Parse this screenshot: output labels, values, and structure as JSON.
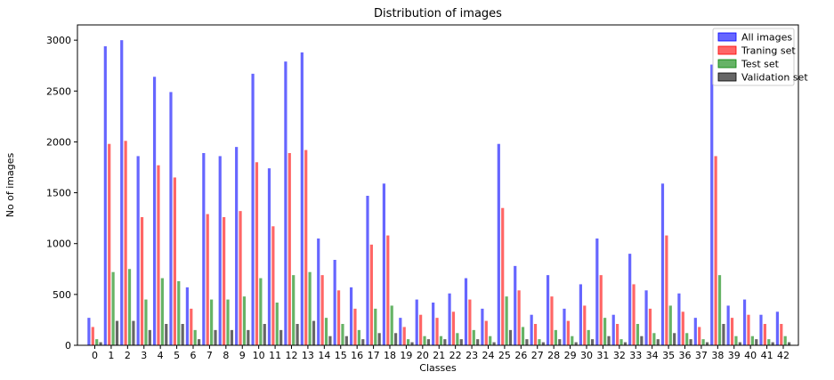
{
  "chart_data": {
    "type": "bar",
    "title": "Distribution of images",
    "xlabel": "Classes",
    "ylabel": "No of images",
    "ylim": [
      0,
      3150
    ],
    "yticks": [
      0,
      500,
      1000,
      1500,
      2000,
      2500,
      3000
    ],
    "grid": false,
    "legend_position": "top-right",
    "categories": [
      "0",
      "1",
      "2",
      "3",
      "4",
      "5",
      "6",
      "7",
      "8",
      "9",
      "10",
      "11",
      "12",
      "13",
      "14",
      "15",
      "16",
      "17",
      "18",
      "19",
      "20",
      "21",
      "22",
      "23",
      "24",
      "25",
      "26",
      "27",
      "28",
      "29",
      "30",
      "31",
      "32",
      "33",
      "34",
      "35",
      "36",
      "37",
      "38",
      "39",
      "40",
      "41",
      "42"
    ],
    "series": [
      {
        "name": "All images",
        "color": "#0000ff",
        "values": [
          270,
          2940,
          3000,
          1860,
          2640,
          2490,
          570,
          1890,
          1860,
          1950,
          2670,
          1740,
          2790,
          2880,
          1050,
          840,
          570,
          1470,
          1590,
          270,
          450,
          420,
          510,
          660,
          360,
          1980,
          780,
          300,
          690,
          360,
          600,
          1050,
          300,
          900,
          540,
          1590,
          510,
          270,
          2760,
          390,
          450,
          300,
          330
        ]
      },
      {
        "name": "Traning set",
        "color": "#ff0000",
        "values": [
          180,
          1980,
          2010,
          1260,
          1770,
          1650,
          360,
          1290,
          1260,
          1320,
          1800,
          1170,
          1890,
          1920,
          690,
          540,
          360,
          990,
          1080,
          180,
          300,
          270,
          330,
          450,
          240,
          1350,
          540,
          210,
          480,
          240,
          390,
          690,
          210,
          600,
          360,
          1080,
          330,
          180,
          1860,
          270,
          300,
          210,
          210
        ]
      },
      {
        "name": "Test set",
        "color": "#008000",
        "values": [
          60,
          720,
          750,
          450,
          660,
          630,
          150,
          450,
          450,
          480,
          660,
          420,
          690,
          720,
          270,
          210,
          150,
          360,
          390,
          60,
          90,
          90,
          120,
          150,
          90,
          480,
          180,
          60,
          150,
          90,
          150,
          270,
          60,
          210,
          120,
          390,
          120,
          60,
          690,
          90,
          90,
          60,
          90
        ]
      },
      {
        "name": "Validation set",
        "color": "#000000",
        "values": [
          30,
          240,
          240,
          150,
          210,
          210,
          60,
          150,
          150,
          150,
          210,
          150,
          210,
          240,
          90,
          90,
          60,
          120,
          120,
          30,
          60,
          60,
          60,
          60,
          30,
          150,
          60,
          30,
          60,
          30,
          60,
          90,
          30,
          90,
          60,
          120,
          60,
          30,
          210,
          30,
          60,
          30,
          30
        ]
      }
    ]
  }
}
